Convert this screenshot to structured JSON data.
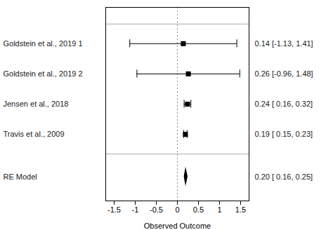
{
  "chart_data": {
    "type": "forest",
    "xlabel": "Observed Outcome",
    "categories": [
      "Goldstein et al., 2019 1",
      "Goldstein et al., 2019 2",
      "Jensen et al., 2018",
      "Travis et al., 2009"
    ],
    "values": [
      0.14,
      0.26,
      0.24,
      0.19
    ],
    "ci_low": [
      -1.13,
      -0.96,
      0.16,
      0.15
    ],
    "ci_high": [
      1.41,
      1.48,
      0.32,
      0.23
    ],
    "annotations": [
      "0.14 [-1.13, 1.41]",
      "0.26 [-0.96, 1.48]",
      "0.24 [ 0.16, 0.32]",
      "0.19 [ 0.15, 0.23]"
    ],
    "summary": {
      "label": "RE Model",
      "value": 0.2,
      "ci_low": 0.16,
      "ci_high": 0.25,
      "annotation": "0.20 [ 0.16, 0.25]"
    },
    "reference_line": 0,
    "xlim": [
      -1.7,
      1.7
    ],
    "xticks": [
      -1.5,
      -1.0,
      -0.5,
      0.0,
      0.5,
      1.0,
      1.5
    ],
    "grid": false
  }
}
